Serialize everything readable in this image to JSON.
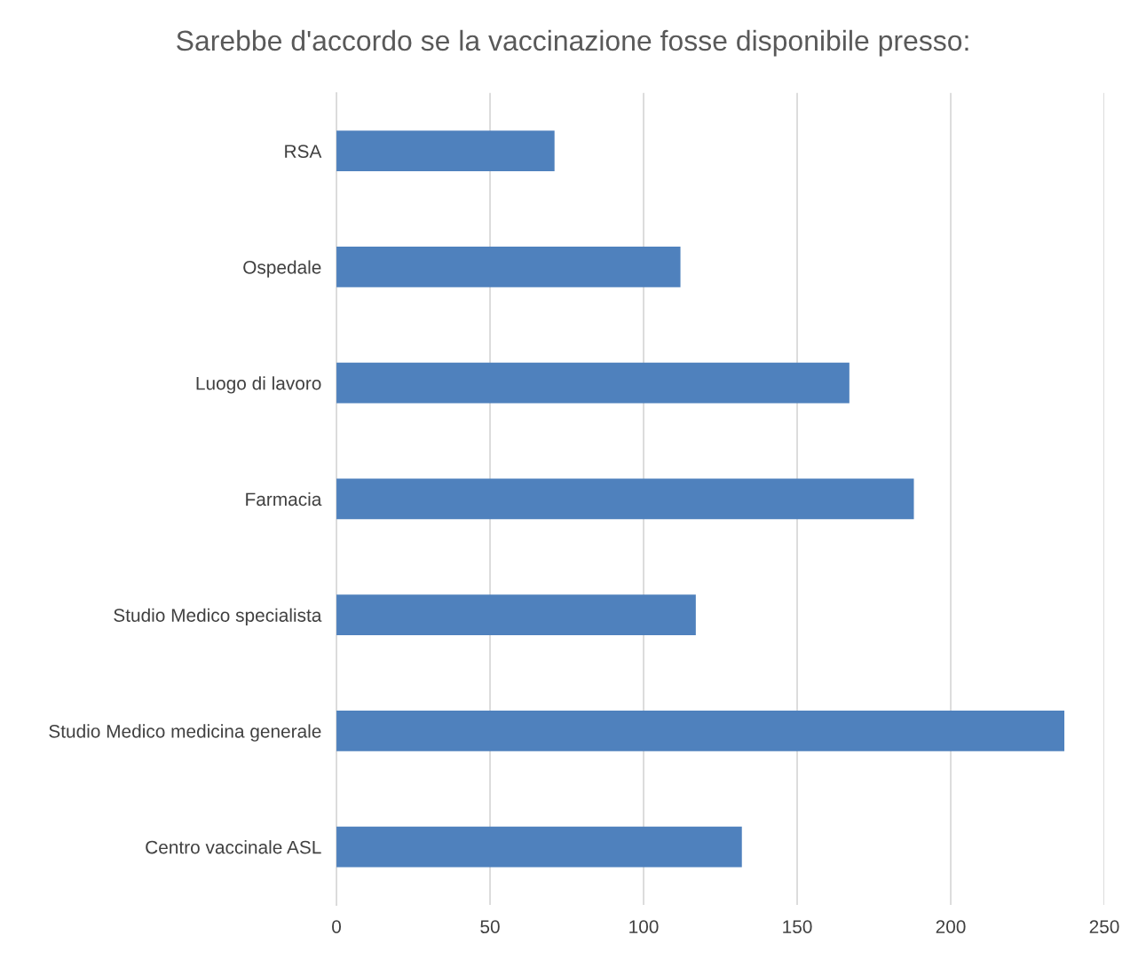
{
  "chart_data": {
    "type": "bar",
    "orientation": "horizontal",
    "title": "Sarebbe d'accordo se la vaccinazione fosse disponibile presso:",
    "categories": [
      "RSA",
      "Ospedale",
      "Luogo di lavoro",
      "Farmacia",
      "Studio Medico specialista",
      "Studio Medico medicina generale",
      "Centro vaccinale ASL"
    ],
    "values": [
      71,
      112,
      167,
      188,
      117,
      237,
      132
    ],
    "color": "#4f81bd",
    "xlim": [
      0,
      250
    ],
    "xticks": [
      0,
      50,
      100,
      150,
      200,
      250
    ],
    "grid": "x",
    "legend": false
  }
}
